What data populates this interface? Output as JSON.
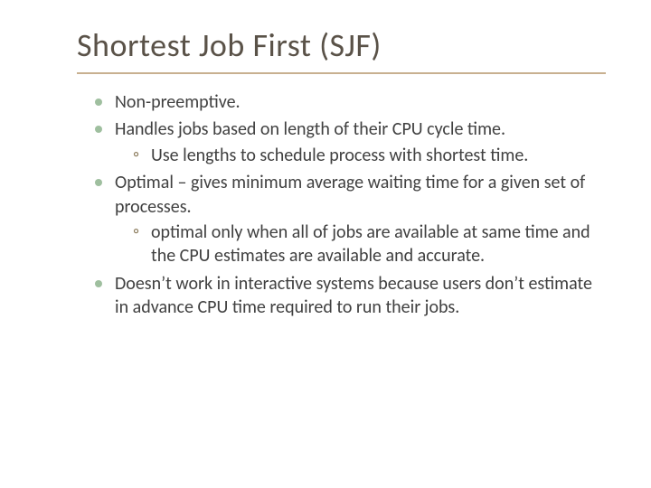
{
  "title": "Shortest Job First (SJF)",
  "colors": {
    "title": "#5a5248",
    "rule": "#c8b090",
    "bullet_dot": "#9fbf9f",
    "sub_bullet": "#8a7a5a",
    "body_text": "#404040",
    "background": "#ffffff"
  },
  "typography": {
    "title_fontsize": 36,
    "body_fontsize": 20,
    "font_family": "Gill Sans"
  },
  "bullets": [
    {
      "text": "Non-preemptive."
    },
    {
      "text": "Handles jobs based on length of their CPU cycle time.",
      "sub": [
        "Use lengths to schedule process with shortest time."
      ]
    },
    {
      "text": "Optimal – gives minimum average waiting time for a given set of processes.",
      "sub": [
        "optimal only when all of jobs are available at same time and the CPU estimates are available and accurate."
      ]
    },
    {
      "text": "Doesn’t work in interactive systems because users don’t estimate in advance CPU time required to run their jobs."
    }
  ]
}
